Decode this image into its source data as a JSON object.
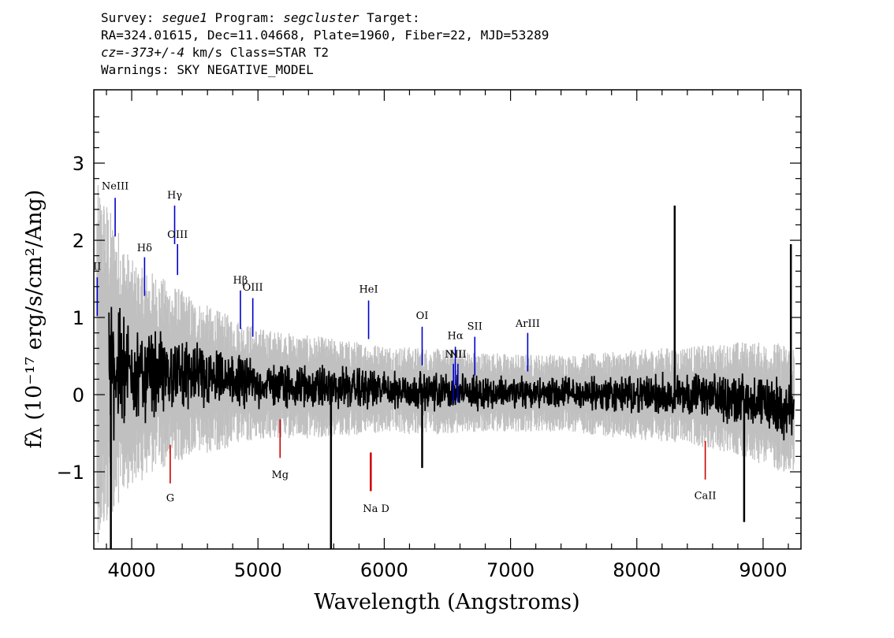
{
  "header": {
    "line1_prefix": "Survey: ",
    "survey": "segue1",
    "line1_mid": " Program: ",
    "program": "segcluster",
    "line1_suffix": " Target:",
    "line2": "RA=324.01615, Dec=11.04668, Plate=1960, Fiber=22, MJD=53289",
    "line3_cz": "cz=-373+/-4",
    "line3_rest": " km/s Class=STAR T2",
    "line4": "Warnings: SKY NEGATIVE_MODEL"
  },
  "chart_data": {
    "type": "line",
    "xlabel": "Wavelength (Angstroms)",
    "ylabel": "fλ (10⁻¹⁷ erg/s/cm²/Ang)",
    "xlim": [
      3700,
      9300
    ],
    "ylim": [
      -2.0,
      3.95
    ],
    "x_ticks": [
      4000,
      5000,
      6000,
      7000,
      8000,
      9000
    ],
    "y_ticks": [
      -1,
      0,
      1,
      2,
      3
    ],
    "y_tick_labels": [
      "−1",
      "0",
      "1",
      "2",
      "3"
    ],
    "grid": false,
    "series": [
      {
        "role": "flux",
        "color": "#000000",
        "x": [
          3820,
          3850,
          3900,
          3950,
          4000,
          4050,
          4100,
          4150,
          4200,
          4250,
          4300,
          4350,
          4400,
          4450,
          4500,
          4600,
          4700,
          4800,
          4900,
          5000,
          5100,
          5200,
          5300,
          5400,
          5500,
          5600,
          5700,
          5800,
          5900,
          6000,
          6100,
          6200,
          6300,
          6400,
          6500,
          6600,
          6700,
          6800,
          6900,
          7000,
          7100,
          7200,
          7300,
          7400,
          7500,
          7600,
          7700,
          7800,
          7900,
          8000,
          8100,
          8200,
          8300,
          8400,
          8500,
          8600,
          8700,
          8800,
          8900,
          9000,
          9100,
          9200
        ],
        "y": [
          0.4,
          0.3,
          0.35,
          0.3,
          0.3,
          0.28,
          0.26,
          0.28,
          0.3,
          0.28,
          0.26,
          0.27,
          0.25,
          0.25,
          0.22,
          0.2,
          0.18,
          0.17,
          0.15,
          0.14,
          0.13,
          0.12,
          0.11,
          0.1,
          0.1,
          0.09,
          0.08,
          0.08,
          0.07,
          0.07,
          0.06,
          0.05,
          0.05,
          0.04,
          0.04,
          0.04,
          0.03,
          0.03,
          0.03,
          0.02,
          0.02,
          0.02,
          0.02,
          0.02,
          0.01,
          0.01,
          0.01,
          0.0,
          0.0,
          0.0,
          0.0,
          0.0,
          0.0,
          0.0,
          -0.02,
          -0.03,
          -0.05,
          -0.05,
          -0.08,
          -0.12,
          -0.15,
          -0.2
        ]
      },
      {
        "role": "error",
        "color": "#c0c0c0",
        "x": [
          3750,
          4000,
          4500,
          5000,
          5500,
          6000,
          6500,
          7000,
          7500,
          8000,
          8500,
          9000,
          9250
        ],
        "y": [
          1.6,
          1.0,
          0.7,
          0.5,
          0.45,
          0.4,
          0.38,
          0.35,
          0.35,
          0.4,
          0.45,
          0.55,
          0.6
        ]
      }
    ],
    "emission_lines": [
      {
        "label": "NeIII",
        "x": 3869,
        "label_y": 2.66,
        "y1": 2.55,
        "y2": 2.05
      },
      {
        "label": "Hγ",
        "x": 4340,
        "label_y": 2.54,
        "y1": 2.45,
        "y2": 1.95
      },
      {
        "label": "OIII",
        "x": 4363,
        "label_y": 2.03,
        "y1": 1.95,
        "y2": 1.55
      },
      {
        "label": "Hδ",
        "x": 4102,
        "label_y": 1.86,
        "y1": 1.78,
        "y2": 1.28
      },
      {
        "label": "Hβ",
        "x": 4861,
        "label_y": 1.44,
        "y1": 1.35,
        "y2": 0.85
      },
      {
        "label": "OIII",
        "x": 4959,
        "label_y": 1.35,
        "y1": 1.25,
        "y2": 0.75
      },
      {
        "label": "HeI",
        "x": 5876,
        "label_y": 1.32,
        "y1": 1.22,
        "y2": 0.72
      },
      {
        "label": "OI",
        "x": 6300,
        "label_y": 0.98,
        "y1": 0.88,
        "y2": 0.38
      },
      {
        "label": "NII",
        "x": 6548,
        "label_y": 0.48,
        "y1": 0.4,
        "y2": -0.1
      },
      {
        "label": "Hα",
        "x": 6563,
        "label_y": 0.72,
        "y1": 0.62,
        "y2": 0.12
      },
      {
        "label": "SII",
        "x": 6717,
        "label_y": 0.84,
        "y1": 0.75,
        "y2": 0.25
      },
      {
        "label": "NII",
        "x": 6583,
        "label_y": 0.48,
        "y1": 0.4,
        "y2": -0.1
      },
      {
        "label": "ArIII",
        "x": 7136,
        "label_y": 0.88,
        "y1": 0.8,
        "y2": 0.3
      },
      {
        "label": "II",
        "x": 3727,
        "label_y": 1.62,
        "y1": 1.52,
        "y2": 1.02
      }
    ],
    "absorption_lines": [
      {
        "label": "G",
        "x": 4305,
        "label_y": -1.38,
        "y1": -0.65,
        "y2": -1.15
      },
      {
        "label": "Mg",
        "x": 5175,
        "label_y": -1.08,
        "y1": -0.32,
        "y2": -0.82
      },
      {
        "label": "Na",
        "x": 5890,
        "label_y": -1.52,
        "y1": -0.75,
        "y2": -1.25
      },
      {
        "label": "D",
        "x": 5896,
        "label_y": -1.52,
        "y1": -0.75,
        "y2": -1.25
      },
      {
        "label": "CaII",
        "x": 8542,
        "label_y": -1.35,
        "y1": -0.6,
        "y2": -1.1
      }
    ],
    "spikes": [
      {
        "x": 3835,
        "y": -2.0
      },
      {
        "x": 5578,
        "y": -2.0
      },
      {
        "x": 8300,
        "y": 2.45
      },
      {
        "x": 8850,
        "y": -1.65
      },
      {
        "x": 9220,
        "y": 1.95
      },
      {
        "x": 6300,
        "y": -0.95
      }
    ],
    "colors": {
      "emission": "#0000cc",
      "absorption": "#cc0000",
      "error": "#c0c0c0",
      "flux": "#000000"
    }
  }
}
